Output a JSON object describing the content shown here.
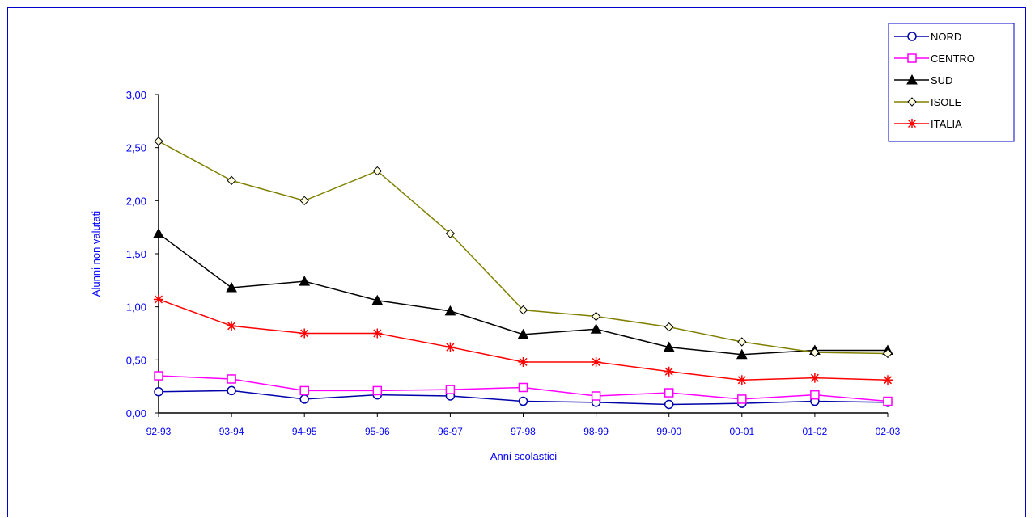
{
  "chart_data": {
    "type": "line",
    "xlabel": "Anni scolastici",
    "ylabel": "Alunni non valutati",
    "categories": [
      "92-93",
      "93-94",
      "94-95",
      "95-96",
      "96-97",
      "97-98",
      "98-99",
      "99-00",
      "00-01",
      "01-02",
      "02-03"
    ],
    "ylim": [
      0,
      3
    ],
    "yticks": [
      "0,00",
      "0,50",
      "1,00",
      "1,50",
      "2,00",
      "2,50",
      "3,00"
    ],
    "grid": false,
    "legend_position": "top-right",
    "series": [
      {
        "name": "NORD",
        "marker": "circle",
        "color": "#0000aa",
        "values": [
          0.2,
          0.21,
          0.13,
          0.17,
          0.16,
          0.11,
          0.1,
          0.08,
          0.09,
          0.11,
          0.1
        ]
      },
      {
        "name": "CENTRO",
        "marker": "square",
        "color": "#ff00ff",
        "values": [
          0.35,
          0.32,
          0.21,
          0.21,
          0.22,
          0.24,
          0.16,
          0.19,
          0.13,
          0.17,
          0.11
        ]
      },
      {
        "name": "SUD",
        "marker": "triangle",
        "color": "#000000",
        "values": [
          1.69,
          1.18,
          1.24,
          1.06,
          0.96,
          0.74,
          0.79,
          0.62,
          0.55,
          0.59,
          0.59
        ]
      },
      {
        "name": "ISOLE",
        "marker": "diamond",
        "color": "#808000",
        "values": [
          2.56,
          2.19,
          2.0,
          2.28,
          1.69,
          0.97,
          0.91,
          0.81,
          0.67,
          0.57,
          0.56
        ]
      },
      {
        "name": "ITALIA",
        "marker": "asterisk",
        "color": "#ff0000",
        "values": [
          1.07,
          0.82,
          0.75,
          0.75,
          0.62,
          0.48,
          0.48,
          0.39,
          0.31,
          0.33,
          0.31
        ]
      }
    ]
  }
}
